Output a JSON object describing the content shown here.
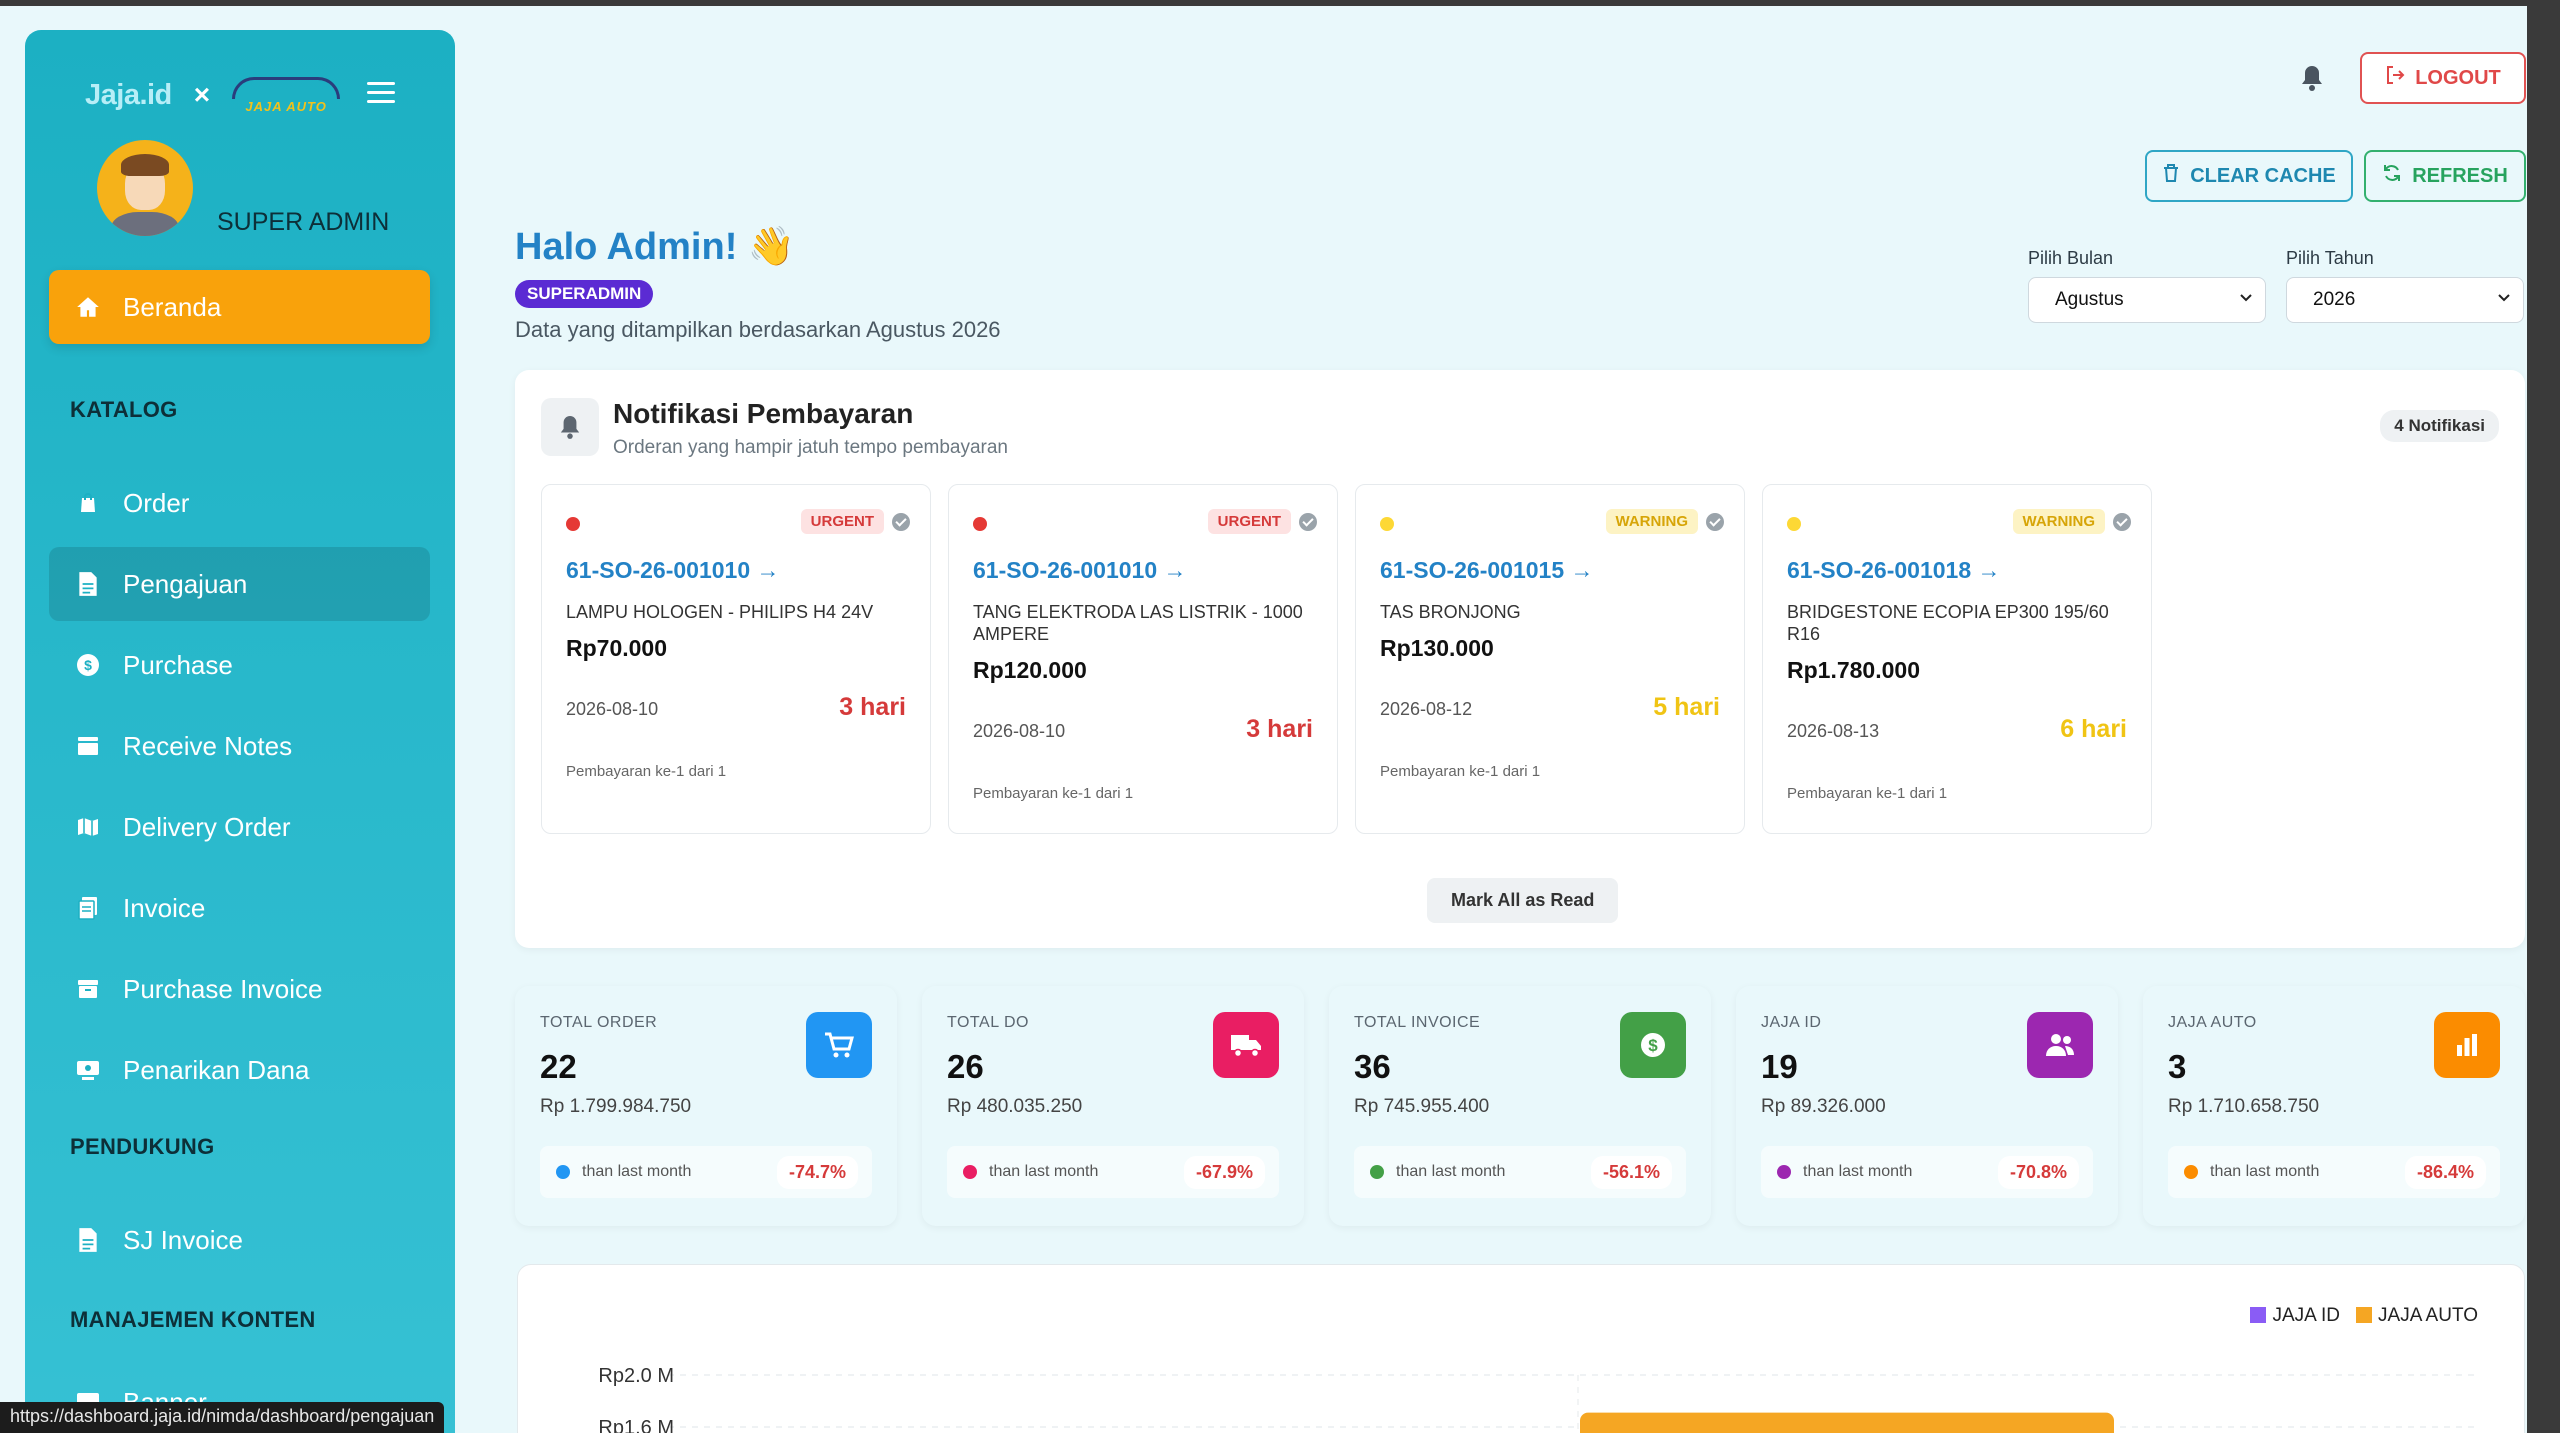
{
  "browser": {
    "status_url": "https://dashboard.jaja.id/nimda/dashboard/pengajuan"
  },
  "sidebar": {
    "brand_jaja": "Jaja.id",
    "brand_x": "×",
    "brand_auto": "JAJA AUTO",
    "user_name": "SUPER ADMIN",
    "active_item": {
      "label": "Beranda",
      "icon": "home-icon"
    },
    "sections": [
      {
        "title": "KATALOG"
      },
      {
        "title": "PENDUKUNG"
      },
      {
        "title": "MANAJEMEN KONTEN"
      }
    ],
    "items": [
      {
        "label": "Order",
        "icon": "shopping-bag-icon"
      },
      {
        "label": "Pengajuan",
        "icon": "file-icon"
      },
      {
        "label": "Purchase",
        "icon": "dollar-circle-icon"
      },
      {
        "label": "Receive Notes",
        "icon": "inbox-icon"
      },
      {
        "label": "Delivery Order",
        "icon": "map-icon"
      },
      {
        "label": "Invoice",
        "icon": "receipt-icon"
      },
      {
        "label": "Purchase Invoice",
        "icon": "archive-icon"
      },
      {
        "label": "Penarikan Dana",
        "icon": "money-withdraw-icon"
      },
      {
        "label": "SJ Invoice",
        "icon": "file-icon"
      },
      {
        "label": "Banner",
        "icon": "image-icon"
      }
    ]
  },
  "header": {
    "logout": "LOGOUT",
    "clear_cache": "CLEAR CACHE",
    "refresh": "REFRESH",
    "greeting": "Halo Admin! 👋",
    "role_badge": "SUPERADMIN",
    "data_note": "Data yang ditampilkan berdasarkan Agustus 2026",
    "month_label": "Pilih Bulan",
    "month_value": "Agustus",
    "year_label": "Pilih Tahun",
    "year_value": "2026"
  },
  "notifications": {
    "title": "Notifikasi Pembayaran",
    "subtitle": "Orderan yang hampir jatuh tempo pembayaran",
    "count": "4 Notifikasi",
    "mark_all": "Mark All as Read",
    "items": [
      {
        "status": "URGENT",
        "code": "61-SO-26-001010 →",
        "product": "LAMPU HOLOGEN - PHILIPS H4 24V",
        "price": "Rp70.000",
        "date": "2026-08-10",
        "days": "3 hari",
        "installment": "Pembayaran ke-1 dari 1"
      },
      {
        "status": "URGENT",
        "code": "61-SO-26-001010 →",
        "product": "TANG ELEKTRODA LAS LISTRIK - 1000 AMPERE",
        "price": "Rp120.000",
        "date": "2026-08-10",
        "days": "3 hari",
        "installment": "Pembayaran ke-1 dari 1"
      },
      {
        "status": "WARNING",
        "code": "61-SO-26-001015 →",
        "product": "TAS BRONJONG",
        "price": "Rp130.000",
        "date": "2026-08-12",
        "days": "5 hari",
        "installment": "Pembayaran ke-1 dari 1"
      },
      {
        "status": "WARNING",
        "code": "61-SO-26-001018 →",
        "product": "BRIDGESTONE ECOPIA EP300 195/60 R16",
        "price": "Rp1.780.000",
        "date": "2026-08-13",
        "days": "6 hari",
        "installment": "Pembayaran ke-1 dari 1"
      }
    ]
  },
  "stats": [
    {
      "label": "TOTAL ORDER",
      "value": "22",
      "amount": "Rp 1.799.984.750",
      "compare": "than last month",
      "change": "-74.7%",
      "icon": "cart-icon",
      "accent": "#2196f3",
      "bg": "#eaf3fd"
    },
    {
      "label": "TOTAL DO",
      "value": "26",
      "amount": "Rp 480.035.250",
      "compare": "than last month",
      "change": "-67.9%",
      "icon": "truck-icon",
      "accent": "#e91e63",
      "bg": "#fce8ef"
    },
    {
      "label": "TOTAL INVOICE",
      "value": "36",
      "amount": "Rp 745.955.400",
      "compare": "than last month",
      "change": "-56.1%",
      "icon": "dollar-icon",
      "accent": "#43a047",
      "bg": "#e8f5ea"
    },
    {
      "label": "JAJA ID",
      "value": "19",
      "amount": "Rp 89.326.000",
      "compare": "than last month",
      "change": "-70.8%",
      "icon": "users-icon",
      "accent": "#9c27b0",
      "bg": "#f4e8f8"
    },
    {
      "label": "JAJA AUTO",
      "value": "3",
      "amount": "Rp 1.710.658.750",
      "compare": "than last month",
      "change": "-86.4%",
      "icon": "bar-chart-icon",
      "accent": "#fb8c00",
      "bg": "#fdf1e6"
    }
  ],
  "chart_data": {
    "type": "bar",
    "series": [
      {
        "name": "JAJA ID",
        "color": "#8a5cf5"
      },
      {
        "name": "JAJA AUTO",
        "color": "#f5a623"
      }
    ],
    "y_ticks": [
      "Rp2.0 M",
      "Rp1.6 M"
    ],
    "ylim": [
      0,
      2000000000
    ],
    "grid": true,
    "legend_position": "top-right",
    "visible_bar": {
      "series": "JAJA AUTO",
      "value": 1710658750
    }
  }
}
